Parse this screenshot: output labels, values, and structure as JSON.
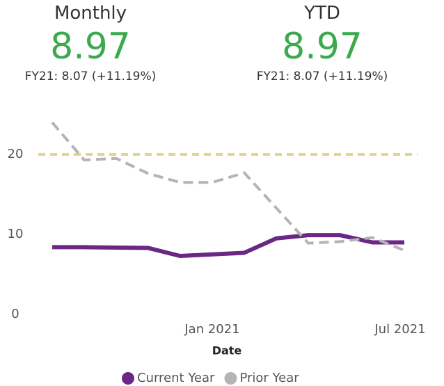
{
  "kpis": [
    {
      "title": "Monthly",
      "value": "8.97",
      "subtitle": "FY21: 8.07 (+11.19%)"
    },
    {
      "title": "YTD",
      "value": "8.97",
      "subtitle": "FY21: 8.07 (+11.19%)"
    }
  ],
  "chart_data": {
    "type": "line",
    "x": [
      "2020-08",
      "2020-09",
      "2020-10",
      "2020-11",
      "2020-12",
      "2021-01",
      "2021-02",
      "2021-03",
      "2021-04",
      "2021-05",
      "2021-06",
      "2021-07"
    ],
    "xlim": [
      "2020-08",
      "2021-07"
    ],
    "xticks": [
      {
        "value": "2021-01",
        "label": "Jan 2021"
      },
      {
        "value": "2021-07",
        "label": "Jul 2021"
      }
    ],
    "x_label": "Date",
    "ylim": [
      0,
      25
    ],
    "yticks": [
      0,
      10,
      20
    ],
    "reference_line": {
      "value": 20,
      "color": "#e8d38c"
    },
    "legend": "bottom",
    "series": [
      {
        "name": "Current Year",
        "color": "#6b2784",
        "style": "solid",
        "values": [
          8.4,
          8.4,
          8.35,
          8.3,
          7.3,
          7.5,
          7.7,
          9.5,
          9.9,
          9.9,
          9.0,
          9.0
        ]
      },
      {
        "name": "Prior Year",
        "color": "#b4b4b6",
        "style": "dashed",
        "values": [
          24.0,
          19.3,
          19.5,
          17.6,
          16.5,
          16.5,
          17.7,
          13.3,
          8.9,
          9.1,
          9.6,
          8.0
        ]
      }
    ]
  }
}
